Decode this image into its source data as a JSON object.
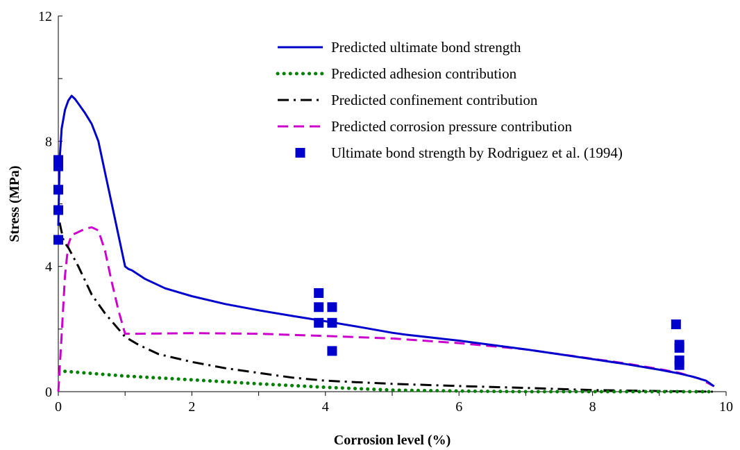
{
  "chart_data": {
    "type": "line",
    "title": "",
    "xlabel": "Corrosion level (%)",
    "ylabel": "Stress  (MPa)",
    "xlim": [
      0,
      10
    ],
    "ylim": [
      0,
      12
    ],
    "xticks": [
      0,
      2,
      4,
      6,
      8,
      10
    ],
    "yticks": [
      0,
      4,
      8,
      12
    ],
    "grid": false,
    "legend_position": "top-right",
    "series": [
      {
        "name": "Predicted ultimate bond strength",
        "style": "solid",
        "color": "#0000CC",
        "x": [
          0,
          0.02,
          0.05,
          0.1,
          0.15,
          0.2,
          0.25,
          0.3,
          0.4,
          0.5,
          0.6,
          0.7,
          0.8,
          0.9,
          1.0,
          1.05,
          1.1,
          1.3,
          1.6,
          2.0,
          2.5,
          3.0,
          3.5,
          4.0,
          4.5,
          5.0,
          5.2,
          6.0,
          7.0,
          8.0,
          8.5,
          9.0,
          9.3,
          9.5,
          9.7,
          9.82
        ],
        "y": [
          5.3,
          7.4,
          8.4,
          9.0,
          9.3,
          9.45,
          9.35,
          9.2,
          8.9,
          8.55,
          8.0,
          7.0,
          6.0,
          5.0,
          4.0,
          3.92,
          3.88,
          3.6,
          3.3,
          3.05,
          2.8,
          2.6,
          2.42,
          2.25,
          2.07,
          1.88,
          1.82,
          1.63,
          1.35,
          1.04,
          0.88,
          0.7,
          0.58,
          0.48,
          0.35,
          0.17
        ]
      },
      {
        "name": "Predicted adhesion contribution",
        "style": "dotted",
        "color": "#008000",
        "x": [
          0.1,
          1.0,
          2.0,
          3.0,
          4.0,
          5.0,
          6.0,
          7.0,
          8.0,
          9.0,
          9.8
        ],
        "y": [
          0.65,
          0.5,
          0.38,
          0.25,
          0.14,
          0.05,
          0.02,
          0.0,
          0.0,
          0.0,
          0.0
        ]
      },
      {
        "name": "Predicted confinement contribution",
        "style": "dash-dot",
        "color": "#000000",
        "x": [
          0.02,
          0.08,
          0.15,
          0.3,
          0.5,
          0.7,
          0.9,
          1.0,
          1.2,
          1.5,
          2.0,
          2.5,
          3.0,
          3.5,
          4.0,
          4.5,
          5.0,
          6.0,
          7.0,
          8.0,
          9.0,
          9.8
        ],
        "y": [
          5.4,
          4.8,
          4.6,
          4.0,
          3.1,
          2.5,
          2.0,
          1.75,
          1.5,
          1.2,
          0.95,
          0.75,
          0.6,
          0.45,
          0.35,
          0.3,
          0.25,
          0.18,
          0.12,
          0.05,
          0.02,
          0.0
        ]
      },
      {
        "name": "Predicted corrosion pressure contribution",
        "style": "dashed",
        "color": "#CC00CC",
        "x": [
          0,
          0.05,
          0.1,
          0.15,
          0.2,
          0.3,
          0.4,
          0.5,
          0.6,
          0.7,
          0.8,
          0.9,
          1.0,
          1.2,
          2.0,
          3.0,
          4.0,
          5.0,
          6.0,
          7.0,
          8.0,
          8.5,
          9.0,
          9.3,
          9.6,
          9.82
        ],
        "y": [
          0,
          1.8,
          3.7,
          4.7,
          5.0,
          5.1,
          5.2,
          5.25,
          5.15,
          4.5,
          3.5,
          2.6,
          1.85,
          1.85,
          1.87,
          1.85,
          1.78,
          1.7,
          1.55,
          1.35,
          1.05,
          0.9,
          0.72,
          0.6,
          0.42,
          0.17
        ]
      },
      {
        "name": "Ultimate bond strength by Rodriguez et al. (1994)",
        "style": "markers",
        "color": "#0000CC",
        "x": [
          0,
          0,
          0,
          0,
          0,
          0,
          3.9,
          3.9,
          3.9,
          4.1,
          4.1,
          4.1,
          9.25,
          9.3,
          9.3,
          9.3,
          9.3
        ],
        "y": [
          7.4,
          7.2,
          6.45,
          5.8,
          4.85,
          7.2,
          3.15,
          2.7,
          2.2,
          2.7,
          2.2,
          1.3,
          2.15,
          1.5,
          1.4,
          1.0,
          0.85
        ]
      }
    ]
  }
}
